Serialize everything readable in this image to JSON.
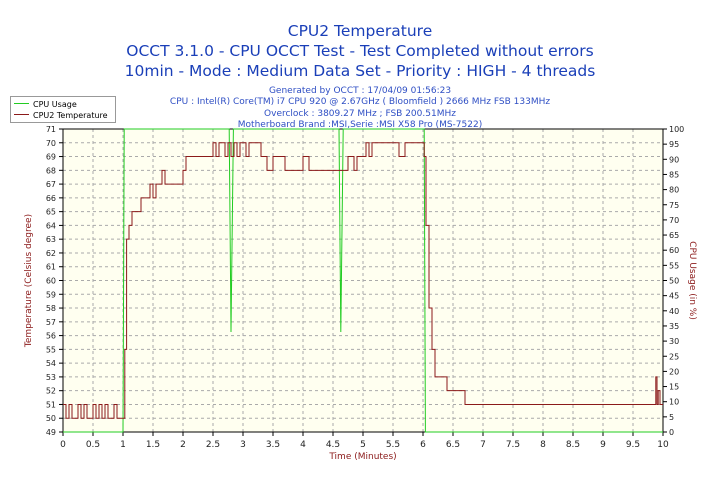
{
  "chart_data": {
    "type": "line",
    "title": "CPU2 Temperature",
    "subtitle": [
      "OCCT 3.1.0 - CPU OCCT Test - Test Completed without errors",
      "10min - Mode : Medium Data Set - Priority : HIGH - 4 threads"
    ],
    "info_lines": [
      "Generated by OCCT : 17/04/09 01:56:23",
      "CPU : Intel(R) Core(TM) i7 CPU 920 @ 2.67GHz ( Bloomfield ) 2666 MHz FSB 133MHz",
      "Overclock : 3809.27 MHz ; FSB 200.51MHz",
      "Motherboard Brand :MSI,Serie :MSI X58 Pro (MS-7522)"
    ],
    "xlabel": "Time (Minutes)",
    "ylabel": "Temperature (Celsius degree)",
    "y2label": "CPU Usage (in %)",
    "xlim": [
      0,
      10
    ],
    "ylim": [
      49,
      71
    ],
    "y2lim": [
      0,
      100
    ],
    "xticks": [
      "0",
      "0.5",
      "1",
      "1.5",
      "2",
      "2.5",
      "3",
      "3.5",
      "4",
      "4.5",
      "5",
      "5.5",
      "6",
      "6.5",
      "7",
      "7.5",
      "8",
      "8.5",
      "9",
      "9.5",
      "10"
    ],
    "yticks": [
      "49",
      "50",
      "51",
      "52",
      "53",
      "54",
      "55",
      "56",
      "57",
      "58",
      "59",
      "60",
      "61",
      "62",
      "63",
      "64",
      "65",
      "66",
      "67",
      "68",
      "69",
      "70",
      "71"
    ],
    "y2ticks": [
      "0",
      "5",
      "10",
      "15",
      "20",
      "25",
      "30",
      "35",
      "40",
      "45",
      "50",
      "55",
      "60",
      "65",
      "70",
      "75",
      "80",
      "85",
      "90",
      "95",
      "100"
    ],
    "grid": true,
    "legend_position": "top-left",
    "series": [
      {
        "name": "CPU Usage",
        "color": "#22cc22",
        "axis": "right",
        "x": [
          0,
          1.0,
          1.02,
          1.04,
          2.77,
          2.8,
          2.84,
          2.87,
          4.6,
          4.63,
          4.67,
          4.7,
          6.0,
          6.02,
          6.04,
          10
        ],
        "values": [
          0,
          0,
          100,
          100,
          100,
          33,
          100,
          100,
          100,
          33,
          100,
          100,
          100,
          100,
          0,
          0
        ]
      },
      {
        "name": "CPU2 Temperature",
        "color": "#8b1a1a",
        "axis": "left",
        "x": [
          0,
          0.05,
          0.1,
          0.15,
          0.2,
          0.25,
          0.3,
          0.35,
          0.4,
          0.45,
          0.5,
          0.55,
          0.6,
          0.65,
          0.7,
          0.75,
          0.8,
          0.85,
          0.9,
          0.95,
          1.0,
          1.03,
          1.06,
          1.1,
          1.15,
          1.2,
          1.25,
          1.3,
          1.35,
          1.4,
          1.45,
          1.5,
          1.55,
          1.6,
          1.65,
          1.7,
          1.8,
          1.9,
          2.0,
          2.05,
          2.1,
          2.2,
          2.3,
          2.4,
          2.5,
          2.55,
          2.6,
          2.65,
          2.7,
          2.75,
          2.8,
          2.85,
          2.9,
          2.95,
          3.0,
          3.05,
          3.1,
          3.15,
          3.2,
          3.3,
          3.4,
          3.5,
          3.6,
          3.7,
          3.8,
          3.9,
          4.0,
          4.1,
          4.2,
          4.3,
          4.4,
          4.5,
          4.6,
          4.65,
          4.7,
          4.75,
          4.8,
          4.85,
          4.9,
          4.95,
          5.0,
          5.05,
          5.1,
          5.15,
          5.2,
          5.3,
          5.4,
          5.5,
          5.6,
          5.7,
          5.8,
          5.9,
          6.0,
          6.02,
          6.05,
          6.1,
          6.15,
          6.2,
          6.3,
          6.4,
          6.5,
          6.6,
          6.7,
          6.8,
          6.9,
          7.0,
          7.1,
          7.2,
          7.3,
          7.4,
          7.5,
          7.6,
          7.7,
          7.8,
          7.9,
          8.0,
          8.1,
          8.2,
          8.3,
          8.4,
          8.5,
          8.6,
          8.7,
          8.8,
          8.9,
          9.0,
          9.1,
          9.2,
          9.3,
          9.4,
          9.5,
          9.6,
          9.7,
          9.8,
          9.85,
          9.88,
          9.9,
          9.92,
          9.95,
          10.0
        ],
        "values": [
          51,
          50,
          51,
          50,
          50,
          51,
          50,
          51,
          50,
          50,
          51,
          50,
          51,
          50,
          51,
          50,
          50,
          51,
          50,
          50,
          50,
          55,
          63,
          64,
          65,
          65,
          65,
          66,
          66,
          66,
          67,
          66,
          67,
          67,
          68,
          67,
          67,
          67,
          68,
          69,
          69,
          69,
          69,
          69,
          70,
          69,
          70,
          70,
          69,
          70,
          69,
          70,
          69,
          70,
          70,
          69,
          70,
          70,
          70,
          69,
          68,
          69,
          69,
          68,
          68,
          68,
          69,
          68,
          68,
          68,
          68,
          68,
          68,
          68,
          68,
          69,
          69,
          68,
          69,
          69,
          69,
          70,
          69,
          70,
          70,
          70,
          70,
          70,
          69,
          70,
          70,
          70,
          70,
          69,
          64,
          58,
          55,
          53,
          53,
          52,
          52,
          52,
          51,
          51,
          51,
          51,
          51,
          51,
          51,
          51,
          51,
          51,
          51,
          51,
          51,
          51,
          51,
          51,
          51,
          51,
          51,
          51,
          51,
          51,
          51,
          51,
          51,
          51,
          51,
          51,
          51,
          51,
          51,
          51,
          51,
          53,
          51,
          52,
          51,
          51
        ]
      }
    ]
  }
}
